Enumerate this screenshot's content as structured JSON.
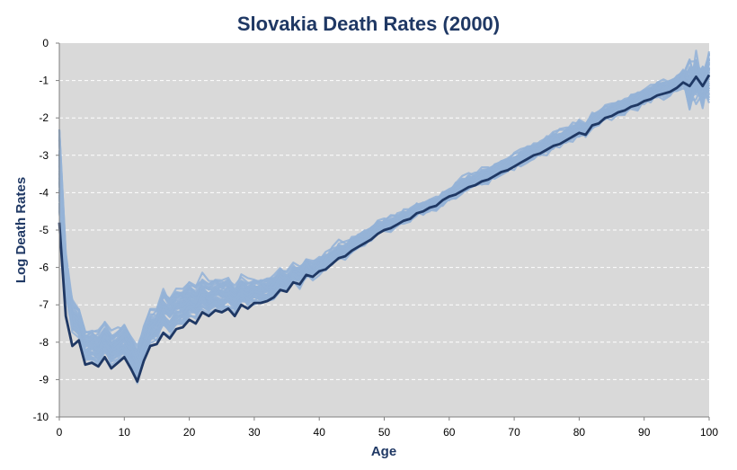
{
  "chart_data": {
    "type": "line",
    "title": "Slovakia Death Rates (2000)",
    "xlabel": "Age",
    "ylabel": "Log Death Rates",
    "xlim": [
      0,
      100
    ],
    "ylim": [
      -10,
      0
    ],
    "x_ticks": [
      "0",
      "10",
      "20",
      "30",
      "40",
      "50",
      "60",
      "70",
      "80",
      "90",
      "100"
    ],
    "y_ticks": [
      "0",
      "-1",
      "-2",
      "-3",
      "-4",
      "-5",
      "-6",
      "-7",
      "-8",
      "-9",
      "-10"
    ],
    "grid": "horizontal dashed",
    "background_color": "#d9d9d9",
    "colors": {
      "highlight": "#1f3864",
      "historical": "#95b3d7"
    },
    "series": [
      {
        "values": [
          [
            0,
            -4.8
          ],
          [
            1,
            -7.3
          ],
          [
            2,
            -8.1
          ],
          [
            3,
            -7.95
          ],
          [
            4,
            -8.6
          ],
          [
            5,
            -8.55
          ],
          [
            6,
            -8.65
          ],
          [
            7,
            -8.4
          ],
          [
            8,
            -8.7
          ],
          [
            9,
            -8.55
          ],
          [
            10,
            -8.4
          ],
          [
            11,
            -8.7
          ],
          [
            12,
            -9.05
          ],
          [
            13,
            -8.5
          ],
          [
            14,
            -8.1
          ],
          [
            15,
            -8.05
          ],
          [
            16,
            -7.75
          ],
          [
            17,
            -7.9
          ],
          [
            18,
            -7.65
          ],
          [
            19,
            -7.6
          ],
          [
            20,
            -7.4
          ],
          [
            21,
            -7.5
          ],
          [
            22,
            -7.2
          ],
          [
            23,
            -7.3
          ],
          [
            24,
            -7.15
          ],
          [
            25,
            -7.2
          ],
          [
            26,
            -7.1
          ],
          [
            27,
            -7.3
          ],
          [
            28,
            -7.0
          ],
          [
            29,
            -7.1
          ],
          [
            30,
            -6.95
          ],
          [
            31,
            -6.95
          ],
          [
            32,
            -6.9
          ],
          [
            33,
            -6.8
          ],
          [
            34,
            -6.6
          ],
          [
            35,
            -6.65
          ],
          [
            36,
            -6.4
          ],
          [
            37,
            -6.45
          ],
          [
            38,
            -6.2
          ],
          [
            39,
            -6.25
          ],
          [
            40,
            -6.1
          ],
          [
            41,
            -6.05
          ],
          [
            42,
            -5.9
          ],
          [
            43,
            -5.75
          ],
          [
            44,
            -5.7
          ],
          [
            45,
            -5.55
          ],
          [
            46,
            -5.45
          ],
          [
            47,
            -5.35
          ],
          [
            48,
            -5.25
          ],
          [
            49,
            -5.1
          ],
          [
            50,
            -5.0
          ],
          [
            51,
            -4.95
          ],
          [
            52,
            -4.85
          ],
          [
            53,
            -4.75
          ],
          [
            54,
            -4.7
          ],
          [
            55,
            -4.55
          ],
          [
            56,
            -4.5
          ],
          [
            57,
            -4.4
          ],
          [
            58,
            -4.35
          ],
          [
            59,
            -4.2
          ],
          [
            60,
            -4.1
          ],
          [
            61,
            -4.05
          ],
          [
            62,
            -3.95
          ],
          [
            63,
            -3.85
          ],
          [
            64,
            -3.8
          ],
          [
            65,
            -3.7
          ],
          [
            66,
            -3.65
          ],
          [
            67,
            -3.55
          ],
          [
            68,
            -3.45
          ],
          [
            69,
            -3.4
          ],
          [
            70,
            -3.3
          ],
          [
            71,
            -3.2
          ],
          [
            72,
            -3.1
          ],
          [
            73,
            -3.0
          ],
          [
            74,
            -2.95
          ],
          [
            75,
            -2.85
          ],
          [
            76,
            -2.75
          ],
          [
            77,
            -2.7
          ],
          [
            78,
            -2.6
          ],
          [
            79,
            -2.5
          ],
          [
            80,
            -2.4
          ],
          [
            81,
            -2.45
          ],
          [
            82,
            -2.2
          ],
          [
            83,
            -2.15
          ],
          [
            84,
            -2.0
          ],
          [
            85,
            -1.95
          ],
          [
            86,
            -1.85
          ],
          [
            87,
            -1.8
          ],
          [
            88,
            -1.7
          ],
          [
            89,
            -1.65
          ],
          [
            90,
            -1.55
          ],
          [
            91,
            -1.5
          ],
          [
            92,
            -1.4
          ],
          [
            93,
            -1.35
          ],
          [
            94,
            -1.3
          ],
          [
            95,
            -1.2
          ],
          [
            96,
            -1.05
          ],
          [
            97,
            -1.15
          ],
          [
            98,
            -0.9
          ],
          [
            99,
            -1.15
          ],
          [
            100,
            -0.85
          ]
        ]
      }
    ]
  }
}
